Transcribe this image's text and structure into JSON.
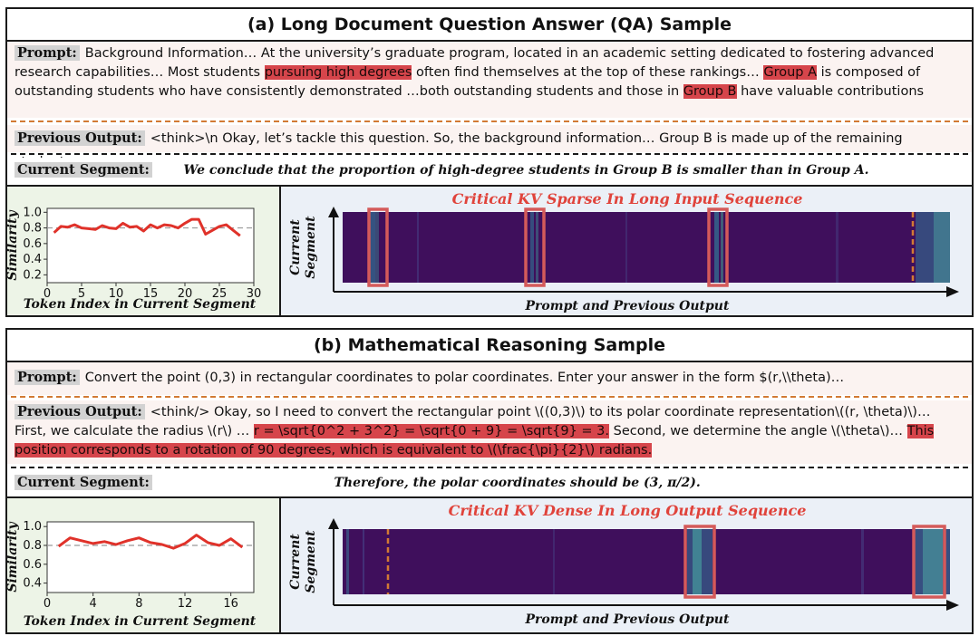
{
  "panel_a": {
    "title": "(a) Long Document Question Answer (QA) Sample",
    "prompt_label": "Prompt:",
    "prompt_parts": {
      "p1": "Background Information… At the university’s graduate program, located in an academic setting dedicated to fostering advanced research capabilities… Most students ",
      "h1": "pursuing high degrees",
      "p2": " often find themselves at the top of these rankings… ",
      "h2": "Group A",
      "p3": " is composed of outstanding students who have consistently demonstrated …both outstanding students and those in ",
      "h3": "Group B",
      "p4": " have valuable contributions"
    },
    "previous_label": "Previous Output:",
    "previous_text": "<think>\\n Okay, let’s tackle this question. So, the background information… Group B is made up of the remaining students.",
    "current_label": "Current Segment:",
    "current_text": "We conclude that the proportion of  high-degree students in Group B is smaller than in Group A."
  },
  "panel_b": {
    "title": "(b) Mathematical Reasoning Sample",
    "prompt_label": "Prompt:",
    "prompt_text": "Convert the point (0,3) in rectangular coordinates to polar coordinates. Enter your answer in the form $(r,\\\\theta)…",
    "previous_label": "Previous Output:",
    "previous_parts": {
      "p1": "<think/> Okay, so I need to convert the rectangular point \\((0,3)\\) to its polar coordinate representation\\((r, \\theta)\\)… First, we calculate the radius \\(r\\) … ",
      "h1": "r = \\sqrt{0^2 + 3^2} = \\sqrt{0 + 9} = \\sqrt{9} = 3.",
      "p2": " Second, we determine the angle \\(\\theta\\)… ",
      "h2": "This position corresponds to a rotation of 90 degrees, which is equivalent to \\(\\frac{\\pi}{2}\\) radians."
    },
    "current_label": "Current Segment:",
    "current_text": "Therefore, the polar coordinates should be (3, π/2)."
  },
  "chart_data": [
    {
      "type": "line",
      "ylabel": "Similarity",
      "xlabel": "Token Index in Current Segment",
      "xlim": [
        0,
        30
      ],
      "ylim": [
        0.1,
        1.05
      ],
      "xticks": [
        0,
        5,
        10,
        15,
        20,
        25,
        30
      ],
      "yticks": [
        0.2,
        0.4,
        0.6,
        0.8,
        1.0
      ],
      "reference_line": 0.8,
      "series": [
        {
          "x": [
            1,
            2,
            3,
            4,
            5,
            6,
            7,
            8,
            9,
            10,
            11,
            12,
            13,
            14,
            15,
            16,
            17,
            18,
            19,
            20,
            21,
            22,
            23,
            24,
            25,
            26,
            27,
            28
          ],
          "values": [
            0.74,
            0.82,
            0.81,
            0.84,
            0.8,
            0.79,
            0.78,
            0.83,
            0.8,
            0.79,
            0.86,
            0.81,
            0.82,
            0.76,
            0.84,
            0.8,
            0.84,
            0.83,
            0.8,
            0.86,
            0.91,
            0.91,
            0.72,
            0.77,
            0.82,
            0.84,
            0.77,
            0.7
          ]
        }
      ]
    },
    {
      "type": "heatmap",
      "title": "Critical KV Sparse In Long Input Sequence",
      "xlabel": "Prompt and Previous Output",
      "ylabel": "Current Segment"
    },
    {
      "type": "line",
      "ylabel": "Similarity",
      "xlabel": "Token Index in Current Segment",
      "xlim": [
        0,
        18
      ],
      "ylim": [
        0.3,
        1.05
      ],
      "xticks": [
        0,
        4,
        8,
        12,
        16
      ],
      "yticks": [
        0.4,
        0.6,
        0.8,
        1.0
      ],
      "reference_line": 0.8,
      "series": [
        {
          "x": [
            1,
            2,
            3,
            4,
            5,
            6,
            7,
            8,
            9,
            10,
            11,
            12,
            13,
            14,
            15,
            16,
            17
          ],
          "values": [
            0.79,
            0.88,
            0.85,
            0.82,
            0.84,
            0.81,
            0.85,
            0.88,
            0.83,
            0.81,
            0.77,
            0.82,
            0.91,
            0.83,
            0.8,
            0.87,
            0.78
          ]
        }
      ]
    },
    {
      "type": "heatmap",
      "title": "Critical KV Dense In Long Output Sequence",
      "xlabel": "Prompt and Previous Output",
      "ylabel": "Current Segment"
    }
  ],
  "colors": {
    "highlight": "#d6454b",
    "line": "#e0322a",
    "dash_orange": "#d27a34",
    "heatmap_bg": "#3f0f5c",
    "box": "#d45a5a"
  }
}
